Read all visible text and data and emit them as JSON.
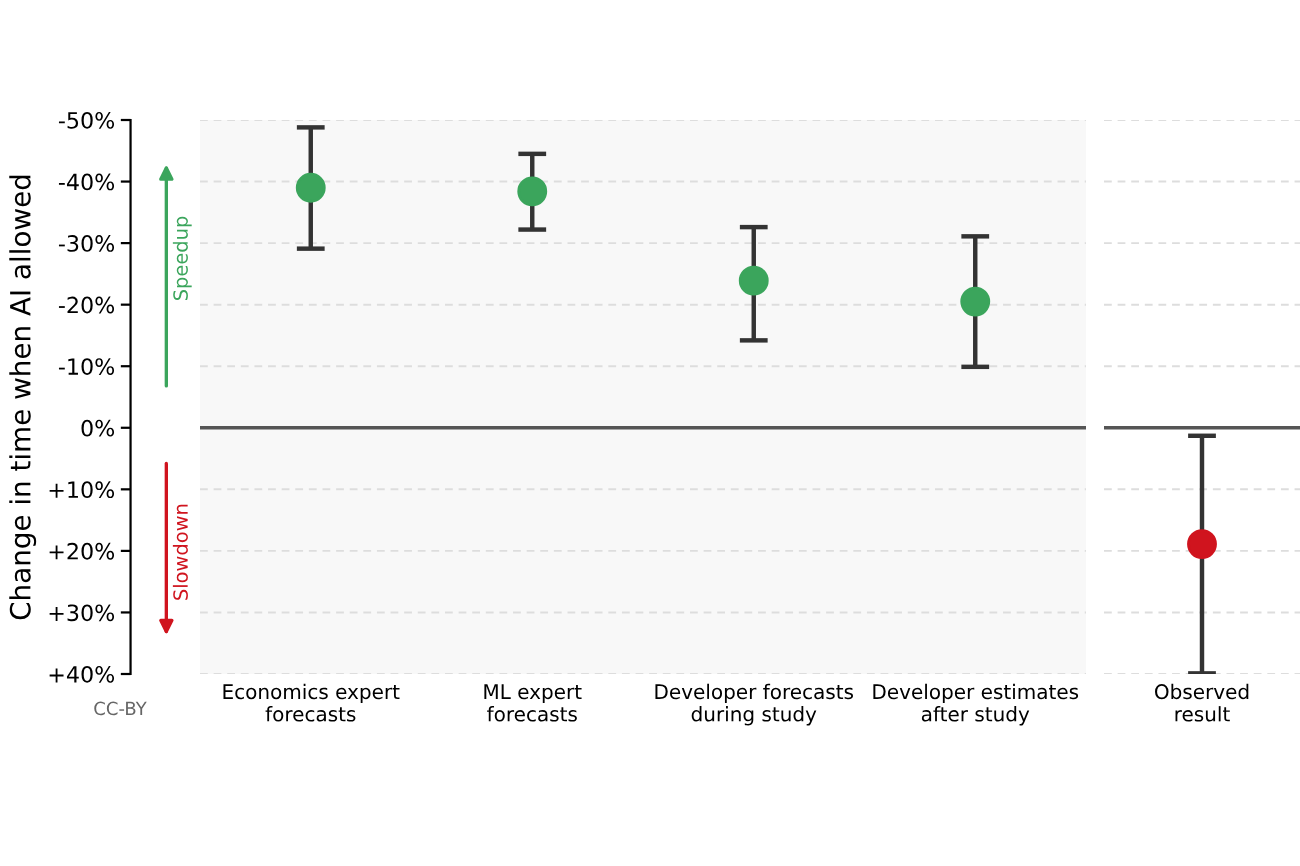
{
  "chart_data": [
    {
      "type": "scatter",
      "ylabel": "Change in time when AI allowed",
      "categories": [
        "Economics expert\nforecasts",
        "ML expert\nforecasts",
        "Developer forecasts\nduring study",
        "Developer estimates\nafter study"
      ],
      "values": [
        -39.0,
        -38.4,
        -23.9,
        -20.5
      ],
      "errors": [
        [
          -48.8,
          -29.1
        ],
        [
          -44.5,
          -32.2
        ],
        [
          -32.6,
          -14.2
        ],
        [
          -31.1,
          -9.9
        ]
      ],
      "colors": [
        "#3ba55c",
        "#3ba55c",
        "#3ba55c",
        "#3ba55c"
      ],
      "ylim": [
        40,
        -50
      ],
      "yticks": [
        {
          "value": -50,
          "label": "-50%"
        },
        {
          "value": -40,
          "label": "-40%"
        },
        {
          "value": -30,
          "label": "-30%"
        },
        {
          "value": -20,
          "label": "-20%"
        },
        {
          "value": -10,
          "label": "-10%"
        },
        {
          "value": 0,
          "label": "0%"
        },
        {
          "value": 10,
          "label": "+10%"
        },
        {
          "value": 20,
          "label": "+20%"
        },
        {
          "value": 30,
          "label": "+30%"
        },
        {
          "value": 40,
          "label": "+40%"
        }
      ],
      "grid": "y",
      "marker": "circle",
      "ref_lines": [
        {
          "axis": "y",
          "value": 0,
          "color": "#555555"
        }
      ],
      "annotations": [
        "Speedup",
        "Slowdown",
        "CC-BY"
      ]
    },
    {
      "type": "scatter",
      "categories": [
        "Observed\nresult"
      ],
      "values": [
        18.9
      ],
      "errors": [
        [
          1.3,
          39.9
        ]
      ],
      "colors": [
        "#d0141e"
      ],
      "ylim": [
        40,
        -50
      ],
      "tick_labels": "x",
      "grid": "y",
      "marker": "circle",
      "ref_lines": [
        {
          "axis": "y",
          "value": 0,
          "color": "#555555"
        }
      ]
    }
  ]
}
